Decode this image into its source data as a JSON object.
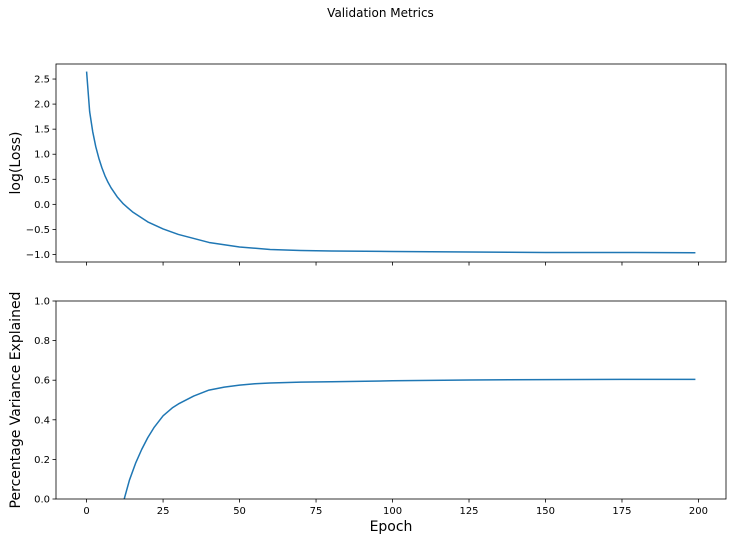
{
  "figure": {
    "title": "Validation Metrics",
    "line_color": "#1f77b4"
  },
  "chart_data": [
    {
      "type": "line",
      "title": "",
      "xlabel": "",
      "ylabel": "log(Loss)",
      "xlim": [
        -10,
        209
      ],
      "ylim": [
        -1.15,
        2.8
      ],
      "xticks": [
        0,
        25,
        50,
        75,
        100,
        125,
        150,
        175,
        200
      ],
      "xtick_labels_visible": false,
      "yticks": [
        -1.0,
        -0.5,
        0.0,
        0.5,
        1.0,
        1.5,
        2.0,
        2.5
      ],
      "ytick_labels": [
        "−1.0",
        "−0.5",
        "0.0",
        "0.5",
        "1.0",
        "1.5",
        "2.0",
        "2.5"
      ],
      "grid": false,
      "series": [
        {
          "x": [
            0,
            1,
            2,
            3,
            4,
            5,
            6,
            7,
            8,
            10,
            12,
            15,
            20,
            25,
            30,
            40,
            50,
            60,
            70,
            80,
            100,
            125,
            150,
            175,
            199
          ],
          "y": [
            2.65,
            1.85,
            1.45,
            1.15,
            0.92,
            0.73,
            0.57,
            0.44,
            0.33,
            0.15,
            0.01,
            -0.15,
            -0.35,
            -0.49,
            -0.6,
            -0.76,
            -0.85,
            -0.9,
            -0.92,
            -0.93,
            -0.94,
            -0.95,
            -0.96,
            -0.96,
            -0.965
          ]
        }
      ]
    },
    {
      "type": "line",
      "title": "",
      "xlabel": "Epoch",
      "ylabel": "Percentage Variance Explained",
      "xlim": [
        -10,
        209
      ],
      "ylim": [
        0.0,
        1.0
      ],
      "xticks": [
        0,
        25,
        50,
        75,
        100,
        125,
        150,
        175,
        200
      ],
      "xtick_labels": [
        "0",
        "25",
        "50",
        "75",
        "100",
        "125",
        "150",
        "175",
        "200"
      ],
      "yticks": [
        0.0,
        0.2,
        0.4,
        0.6,
        0.8,
        1.0
      ],
      "ytick_labels": [
        "0.0",
        "0.2",
        "0.4",
        "0.6",
        "0.8",
        "1.0"
      ],
      "grid": false,
      "series": [
        {
          "x": [
            12.3,
            14,
            16,
            18,
            20,
            22,
            25,
            28,
            30,
            35,
            40,
            45,
            50,
            55,
            60,
            70,
            80,
            100,
            125,
            150,
            175,
            199
          ],
          "y": [
            0.0,
            0.095,
            0.18,
            0.25,
            0.31,
            0.36,
            0.42,
            0.46,
            0.48,
            0.52,
            0.55,
            0.565,
            0.575,
            0.582,
            0.586,
            0.59,
            0.592,
            0.597,
            0.601,
            0.603,
            0.604,
            0.604
          ]
        }
      ]
    }
  ]
}
